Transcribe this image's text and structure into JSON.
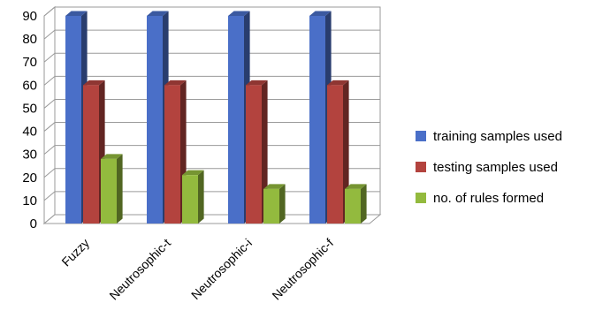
{
  "chart_data": {
    "type": "bar",
    "title": "",
    "xlabel": "",
    "ylabel": "",
    "categories": [
      "Fuzzy",
      "Neutrosophic-t",
      "Neutrosophic-i",
      "Neutrosophic-f"
    ],
    "series": [
      {
        "name": "training samples used",
        "color": "#4a6fc8",
        "values": [
          90,
          90,
          90,
          90
        ]
      },
      {
        "name": "testing samples used",
        "color": "#b3433e",
        "values": [
          60,
          60,
          60,
          60
        ]
      },
      {
        "name": "no. of rules formed",
        "color": "#93ba3e",
        "values": [
          28,
          21,
          15,
          15
        ]
      }
    ],
    "ylim": [
      0,
      90
    ],
    "yticks": [
      "0",
      "10",
      "20",
      "30",
      "40",
      "50",
      "60",
      "70",
      "80",
      "90"
    ],
    "grid": true,
    "legend_position": "right",
    "style": "3d-clustered-column"
  }
}
